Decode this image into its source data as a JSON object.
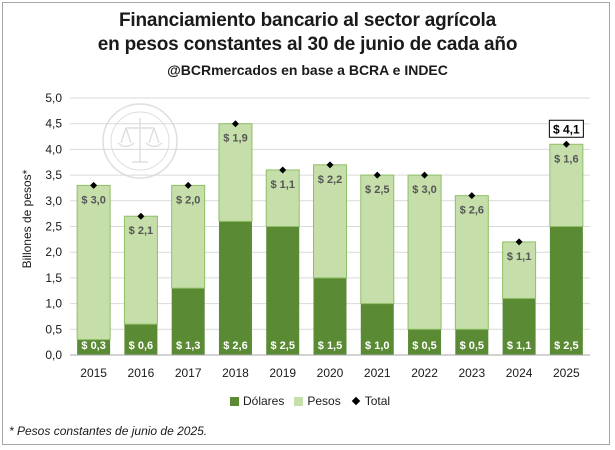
{
  "title_line1": "Financiamiento bancario al sector agrícola",
  "title_line2": "en pesos constantes al 30 de junio de cada año",
  "subtitle": "@BCRmercados en base a BCRA e INDEC",
  "footnote": "* Pesos constantes de junio de 2025.",
  "watermark_text": "BOLSA DE COMERCIO DE ROSARIO",
  "colors": {
    "dolares": "#5a8a34",
    "pesos": "#c5deaa",
    "bar_border": "#8fbf67",
    "total": "#000000"
  },
  "chart_data": {
    "type": "bar",
    "stacked": true,
    "categories": [
      "2015",
      "2016",
      "2017",
      "2018",
      "2019",
      "2020",
      "2021",
      "2022",
      "2023",
      "2024",
      "2025"
    ],
    "series": [
      {
        "name": "Dólares",
        "values": [
          0.3,
          0.6,
          1.3,
          2.6,
          2.5,
          1.5,
          1.0,
          0.5,
          0.5,
          1.1,
          2.5
        ],
        "labels": [
          "$ 0,3",
          "$ 0,6",
          "$ 1,3",
          "$ 2,6",
          "$ 2,5",
          "$ 1,5",
          "$ 1,0",
          "$ 0,5",
          "$ 0,5",
          "$ 1,1",
          "$ 2,5"
        ]
      },
      {
        "name": "Pesos",
        "values": [
          3.0,
          2.1,
          2.0,
          1.9,
          1.1,
          2.2,
          2.5,
          3.0,
          2.6,
          1.1,
          1.6
        ],
        "labels": [
          "$ 3,0",
          "$ 2,1",
          "$ 2,0",
          "$ 1,9",
          "$ 1,1",
          "$ 2,2",
          "$ 2,5",
          "$ 3,0",
          "$ 2,6",
          "$ 1,1",
          "$ 1,6"
        ]
      },
      {
        "name": "Total",
        "values": [
          3.3,
          2.7,
          3.3,
          4.5,
          3.6,
          3.7,
          3.5,
          3.5,
          3.1,
          2.2,
          4.1
        ]
      }
    ],
    "total_callout": {
      "category": "2025",
      "label": "$ 4,1"
    },
    "ylabel": "Billones de pesos*",
    "ylim": [
      0,
      5.0
    ],
    "yticks": [
      "0,0",
      "0,5",
      "1,0",
      "1,5",
      "2,0",
      "2,5",
      "3,0",
      "3,5",
      "4,0",
      "4,5",
      "5,0"
    ],
    "grid": true,
    "legend_position": "bottom"
  }
}
